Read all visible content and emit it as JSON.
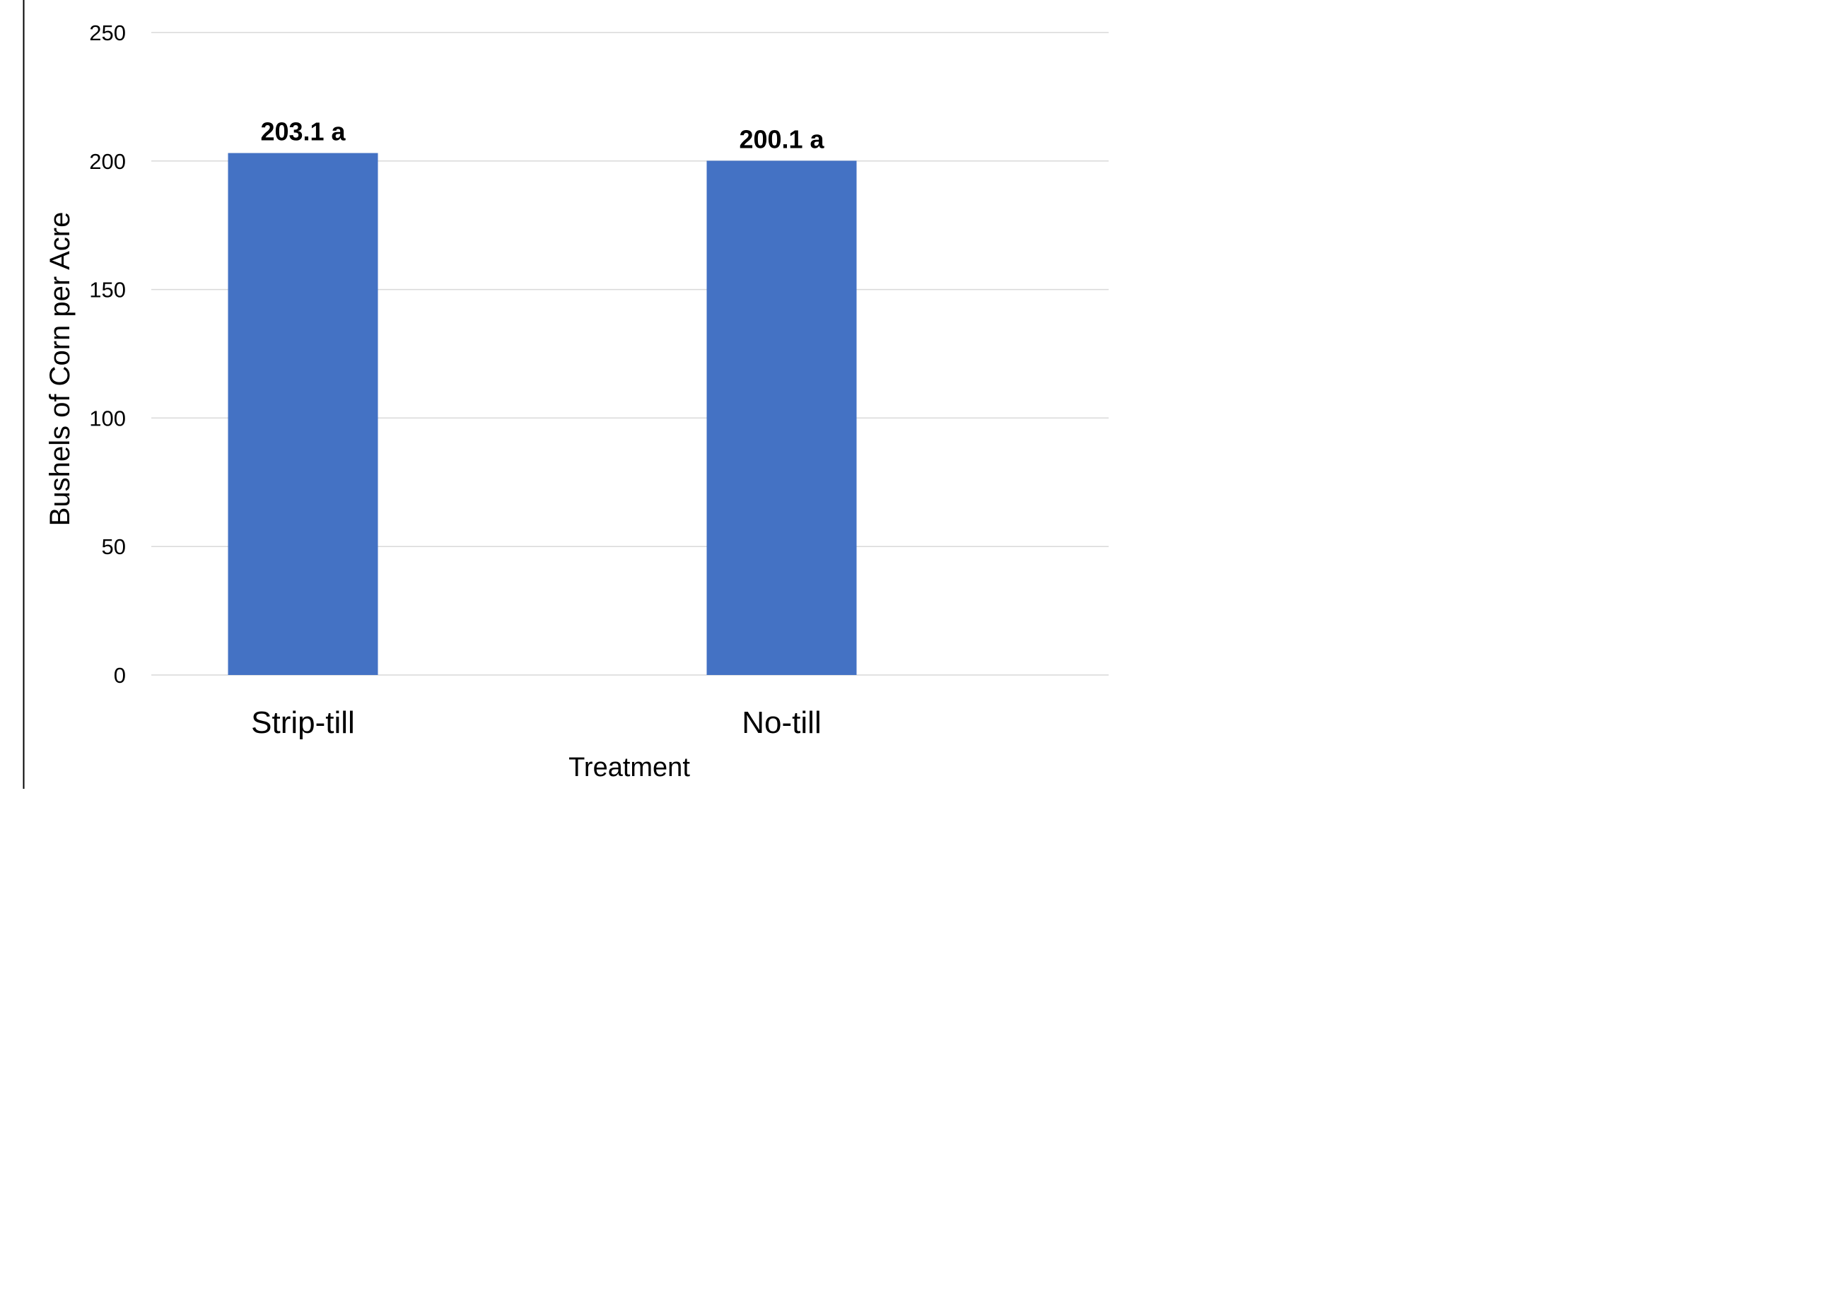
{
  "chart_data": {
    "type": "bar",
    "title": "",
    "categories": [
      "Strip-till",
      "No-till"
    ],
    "values": [
      203.1,
      200.1
    ],
    "data_labels": [
      "203.1  a",
      "200.1  a"
    ],
    "xlabel": "Treatment",
    "ylabel": "Bushels of Corn per Acre",
    "ylim": [
      0,
      250
    ],
    "yticks": [
      "0",
      "50",
      "100",
      "150",
      "200",
      "250"
    ],
    "grid": true,
    "legend": "none",
    "bar_color": "#4472C4",
    "grid_color": "#d9d9d9",
    "frame_color": "#000000"
  }
}
